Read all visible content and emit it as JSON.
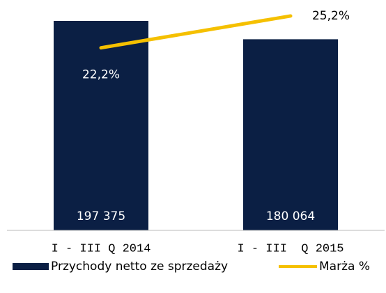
{
  "chart_data": {
    "type": "bar-line",
    "categories": [
      "I - III Q 2014",
      "I - III  Q 2015"
    ],
    "series": [
      {
        "name": "Przychody netto ze sprzedaży",
        "type": "bar",
        "color": "#0b1f44",
        "values": [
          197375,
          180064
        ],
        "value_labels": [
          "197 375",
          "180 064"
        ]
      },
      {
        "name": "Marża %",
        "type": "line",
        "axis": "y2",
        "color": "#f5c000",
        "values": [
          22.2,
          25.2
        ],
        "value_labels": [
          "22,2%",
          "25,2%"
        ]
      }
    ],
    "ylim": [
      0,
      200000
    ],
    "y2lim": [
      5,
      25
    ],
    "legend": "bottom"
  }
}
